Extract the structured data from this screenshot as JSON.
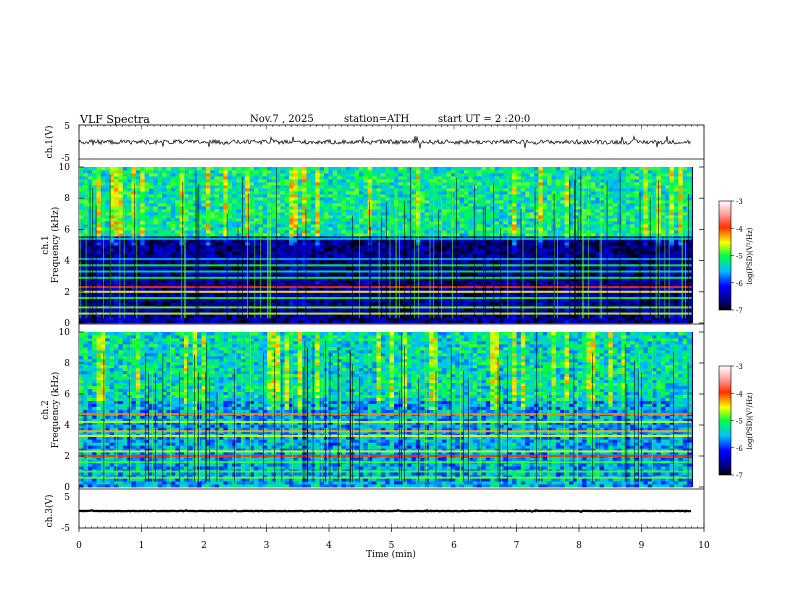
{
  "header": {
    "title": "VLF Spectra",
    "date": "Nov.7 , 2025",
    "station": "station=ATH",
    "start": "start UT = 2 :20:0"
  },
  "chart_data": [
    {
      "type": "line",
      "panel": "ch.1 time series",
      "ylabel": "ch.1(V)",
      "ylim": [
        -5,
        5
      ],
      "ytick_labels": [
        "5",
        "-5"
      ],
      "xlim": [
        0,
        10
      ],
      "description_values": {
        "mean": 0.0,
        "noise_amplitude": 1.0
      }
    },
    {
      "type": "heatmap",
      "panel": "ch.1 spectrogram",
      "ylabel_top": "ch.1",
      "ylabel": "Frequency (kHz)",
      "ylim": [
        0,
        10
      ],
      "ytick_labels": [
        "0",
        "2",
        "4",
        "6",
        "8",
        "10"
      ],
      "xlim": [
        0,
        9.8
      ],
      "colorbar": {
        "label": "log(PSD)(V²/Hz)",
        "range": [
          -7,
          -3
        ],
        "tick_labels": [
          "-3",
          "-4",
          "-5",
          "-6",
          "-7"
        ]
      },
      "bands_khz": [
        {
          "f": 0.6,
          "level": -4.6
        },
        {
          "f": 1.0,
          "level": -4.8
        },
        {
          "f": 1.6,
          "level": -5.0
        },
        {
          "f": 2.0,
          "level": -4.5
        },
        {
          "f": 2.3,
          "level": -4.0
        },
        {
          "f": 2.9,
          "level": -5.0
        },
        {
          "f": 3.3,
          "level": -5.2
        },
        {
          "f": 3.7,
          "level": -5.0
        },
        {
          "f": 4.1,
          "level": -5.6
        },
        {
          "f": 5.4,
          "level": -5.4
        }
      ],
      "background_level_high": -5.2,
      "background_level_low": -6.6
    },
    {
      "type": "heatmap",
      "panel": "ch.2 spectrogram",
      "ylabel_top": "ch.2",
      "ylabel": "Frequency (kHz)",
      "ylim": [
        0,
        10
      ],
      "ytick_labels": [
        "0",
        "2",
        "4",
        "6",
        "8",
        "10"
      ],
      "xlim": [
        0,
        9.8
      ],
      "colorbar": {
        "label": "log(PSD)(V²/Hz)",
        "range": [
          -7,
          -3
        ],
        "tick_labels": [
          "-3",
          "-4",
          "-5",
          "-6",
          "-7"
        ]
      },
      "bands_khz": [
        {
          "f": 0.6,
          "level": -4.8
        },
        {
          "f": 1.0,
          "level": -4.9
        },
        {
          "f": 1.6,
          "level": -4.9
        },
        {
          "f": 2.0,
          "level": -4.0
        },
        {
          "f": 2.3,
          "level": -4.6
        },
        {
          "f": 3.3,
          "level": -4.5
        },
        {
          "f": 3.6,
          "level": -4.3
        },
        {
          "f": 4.2,
          "level": -4.6
        },
        {
          "f": 4.7,
          "level": -4.2
        }
      ],
      "background_level_high": -5.3,
      "background_level_low": -5.6
    },
    {
      "type": "line",
      "panel": "ch.3 time series",
      "ylabel": "ch.3(V)",
      "ylim": [
        -5,
        5
      ],
      "ytick_labels": [
        "5",
        "-5"
      ],
      "xlim": [
        0,
        10
      ],
      "description_values": {
        "mean": 0.0,
        "noise_amplitude": 0.25
      }
    },
    {
      "type": "axis",
      "panel": "shared time axis",
      "xlabel": "Time (min)",
      "xlim": [
        0,
        10
      ],
      "tick_labels": [
        "0",
        "1",
        "2",
        "3",
        "4",
        "5",
        "6",
        "7",
        "8",
        "9",
        "10"
      ]
    }
  ]
}
